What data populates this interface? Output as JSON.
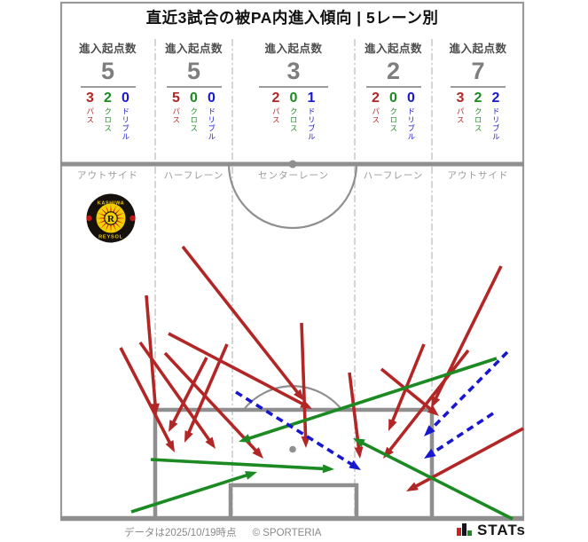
{
  "title": "直近3試合の被PA内進入傾向 | 5レーン別",
  "stats_header_label": "進入起点数",
  "breakdown_labels": {
    "pass": "パス",
    "cross": "クロス",
    "dribble": "ドリブル"
  },
  "lanes": [
    {
      "zone": "アウトサイド",
      "total": 5,
      "pass": 3,
      "cross": 2,
      "dribble": 0
    },
    {
      "zone": "ハーフレーン",
      "total": 5,
      "pass": 5,
      "cross": 0,
      "dribble": 0
    },
    {
      "zone": "センターレーン",
      "total": 3,
      "pass": 2,
      "cross": 0,
      "dribble": 1
    },
    {
      "zone": "ハーフレーン",
      "total": 2,
      "pass": 2,
      "cross": 0,
      "dribble": 0
    },
    {
      "zone": "アウトサイド",
      "total": 7,
      "pass": 3,
      "cross": 2,
      "dribble": 2
    }
  ],
  "badge": {
    "team": "Kashiwa Reysol",
    "top_text": "KASHIWA",
    "bottom_text": "REYSOL",
    "letter": "R"
  },
  "footer": {
    "note": "データは2025/10/19時点",
    "copyright": "© SPORTERIA",
    "logo_text": "STATs"
  },
  "colors": {
    "pass": "#b22726",
    "cross": "#1b8a22",
    "dribble": "#1717cf",
    "pitch_line": "#8f8f8f",
    "divider": "#c3c3c3",
    "stat_header": "#4d4d4d",
    "stat_total": "#7e7e7e",
    "zone_label": "#9b9b9b",
    "footer_text": "#8a8a8a"
  },
  "chart_data": {
    "type": "scatter",
    "title": "直近3試合の被PA内進入傾向 | 5レーン別",
    "description": "半面ピッチ上の矢印はPA内への進入経路（起点→進入点）。赤実線=パス、緑実線=クロス、青破線=ドリブル。",
    "lanes": [
      "アウトサイド",
      "ハーフレーン",
      "センターレーン",
      "ハーフレーン",
      "アウトサイド"
    ],
    "entry_counts": [
      5,
      5,
      3,
      2,
      7
    ],
    "pass_counts": [
      3,
      5,
      2,
      2,
      3
    ],
    "cross_counts": [
      2,
      0,
      0,
      0,
      2
    ],
    "dribble_counts": [
      0,
      0,
      1,
      0,
      2
    ],
    "arrows": [
      {
        "type": "pass",
        "from": [
          165,
          333
        ],
        "to": [
          176,
          468
        ]
      },
      {
        "type": "pass",
        "from": [
          136,
          392
        ],
        "to": [
          197,
          510
        ]
      },
      {
        "type": "pass",
        "from": [
          158,
          386
        ],
        "to": [
          243,
          506
        ]
      },
      {
        "type": "pass",
        "from": [
          206,
          278
        ],
        "to": [
          343,
          452
        ]
      },
      {
        "type": "pass",
        "from": [
          190,
          376
        ],
        "to": [
          352,
          461
        ]
      },
      {
        "type": "pass",
        "from": [
          186,
          398
        ],
        "to": [
          297,
          517
        ]
      },
      {
        "type": "pass",
        "from": [
          233,
          403
        ],
        "to": [
          190,
          487
        ]
      },
      {
        "type": "pass",
        "from": [
          256,
          388
        ],
        "to": [
          208,
          499
        ]
      },
      {
        "type": "pass",
        "from": [
          394,
          420
        ],
        "to": [
          406,
          517
        ]
      },
      {
        "type": "pass",
        "from": [
          340,
          364
        ],
        "to": [
          345,
          505
        ]
      },
      {
        "type": "pass",
        "from": [
          478,
          388
        ],
        "to": [
          438,
          486
        ]
      },
      {
        "type": "pass",
        "from": [
          430,
          416
        ],
        "to": [
          495,
          469
        ]
      },
      {
        "type": "pass",
        "from": [
          565,
          300
        ],
        "to": [
          486,
          460
        ]
      },
      {
        "type": "pass",
        "from": [
          590,
          483
        ],
        "to": [
          458,
          554
        ]
      },
      {
        "type": "pass",
        "from": [
          528,
          395
        ],
        "to": [
          432,
          517
        ]
      },
      {
        "type": "cross",
        "from": [
          170,
          518
        ],
        "to": [
          377,
          529
        ]
      },
      {
        "type": "cross",
        "from": [
          148,
          577
        ],
        "to": [
          290,
          532
        ]
      },
      {
        "type": "cross",
        "from": [
          560,
          404
        ],
        "to": [
          269,
          498
        ]
      },
      {
        "type": "cross",
        "from": [
          578,
          585
        ],
        "to": [
          398,
          494
        ]
      },
      {
        "type": "dribble",
        "from": [
          266,
          442
        ],
        "to": [
          407,
          530
        ]
      },
      {
        "type": "dribble",
        "from": [
          572,
          397
        ],
        "to": [
          478,
          492
        ]
      },
      {
        "type": "dribble",
        "from": [
          556,
          466
        ],
        "to": [
          478,
          517
        ]
      }
    ]
  }
}
